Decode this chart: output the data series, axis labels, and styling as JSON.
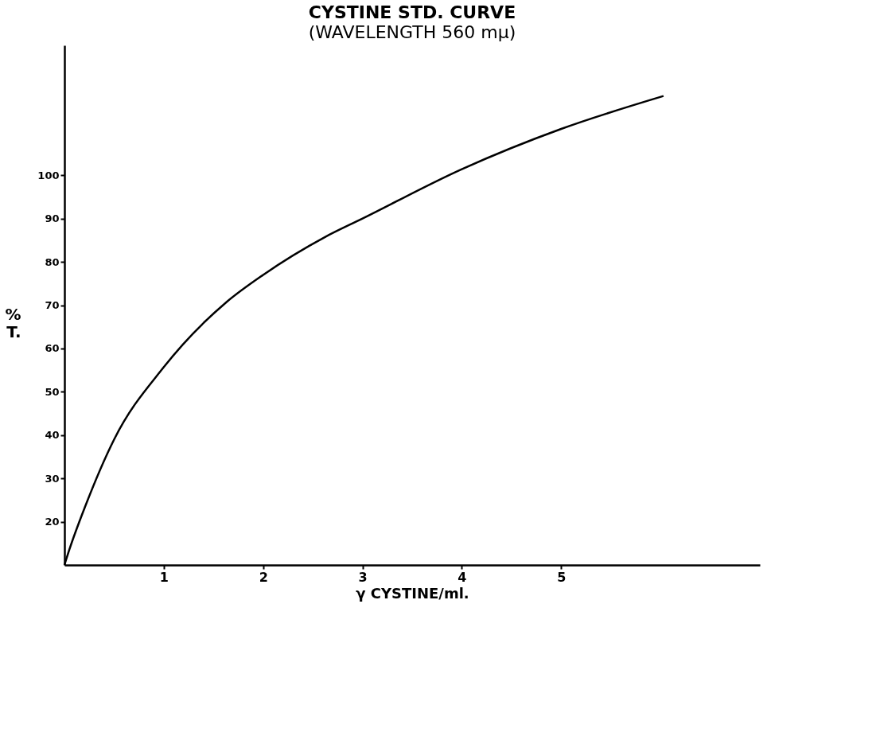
{
  "chart_data": {
    "type": "line",
    "title": "CYSTINE STD. CURVE",
    "subtitle": "(WAVELENGTH 560 mμ)",
    "xlabel": "γ CYSTINE/ml.",
    "ylabel": "% T.",
    "x": [
      0,
      0.05,
      0.21,
      0.5,
      1,
      1.63,
      2,
      2.62,
      3,
      4,
      5,
      6.03
    ],
    "series": [
      {
        "color": "#000000",
        "values": [
          10,
          13.6,
          23.6,
          39,
          55.7,
          70.7,
          77,
          85.7,
          90,
          101.4,
          110.7,
          118.3
        ]
      }
    ],
    "xlim": [
      0,
      7
    ],
    "ylim": [
      10,
      130
    ],
    "xticks": [
      1,
      2,
      3,
      4,
      5
    ],
    "yticks": [
      20,
      30,
      40,
      50,
      60,
      70,
      80,
      90,
      100
    ],
    "grid": false,
    "marker": "none",
    "line_style": "solid"
  }
}
